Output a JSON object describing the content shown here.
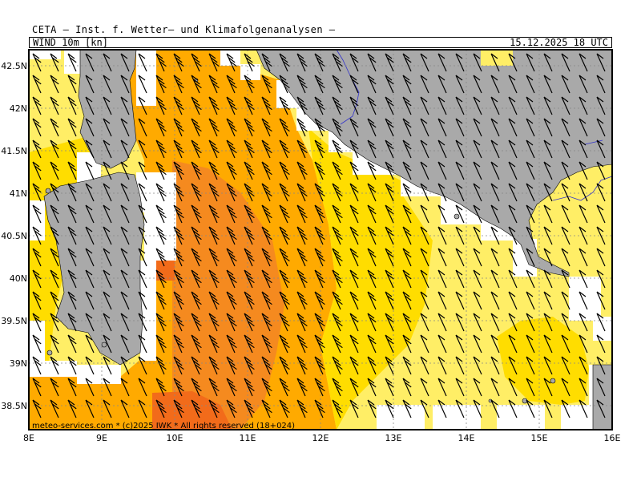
{
  "header": {
    "title": "CETA — Inst. f. Wetter– und Klimafolgenanalysen —",
    "parameter": "WIND 10m [kn]",
    "valid_time": "15.12.2025 18 UTC"
  },
  "map": {
    "lon_range": [
      8,
      16
    ],
    "lat_range": [
      38.2,
      42.7
    ],
    "lon_labels": [
      "8E",
      "9E",
      "10E",
      "11E",
      "12E",
      "13E",
      "14E",
      "15E",
      "16E"
    ],
    "lat_labels": [
      "42.5N",
      "42N",
      "41.5N",
      "41N",
      "40.5N",
      "40N",
      "39.5N",
      "39N",
      "38.5N"
    ],
    "colors": {
      "land": "#a9a9a9",
      "wind_light": "#ffee66",
      "wind_moderate": "#ffdd00",
      "wind_fresh": "#ffaa00",
      "wind_strong": "#f58a1f",
      "wind_gale": "#f26b1a",
      "calm": "#b8f0c8",
      "river": "#3333cc"
    }
  },
  "footer": {
    "copyright": "meteo-services.com * (c)2025 IWK * All rights reserved (18+024)"
  }
}
